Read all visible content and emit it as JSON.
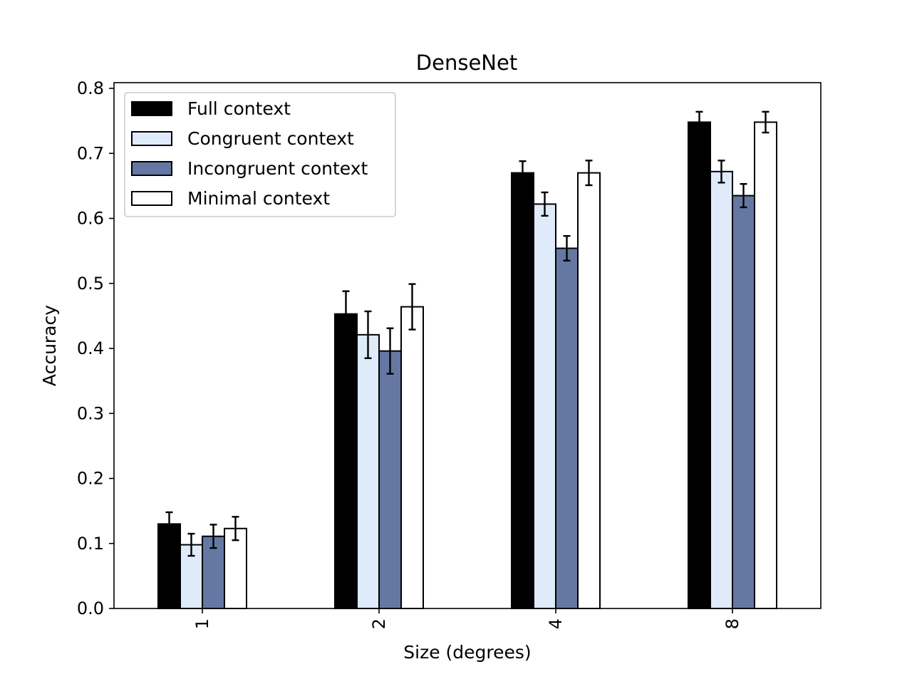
{
  "chart_data": {
    "type": "bar",
    "title": "DenseNet",
    "xlabel": "Size (degrees)",
    "ylabel": "Accuracy",
    "categories": [
      "1",
      "2",
      "4",
      "8"
    ],
    "ylim": [
      0,
      0.8
    ],
    "yticks": [
      "0.0",
      "0.1",
      "0.2",
      "0.3",
      "0.4",
      "0.5",
      "0.6",
      "0.7",
      "0.8"
    ],
    "x_tick_rotation": -90,
    "grid": false,
    "legend_position": "top-left",
    "error_bars": true,
    "series": [
      {
        "name": "Full context",
        "color": "#000000",
        "values": [
          0.13,
          0.453,
          0.67,
          0.748
        ],
        "errors": [
          0.018,
          0.035,
          0.018,
          0.016
        ]
      },
      {
        "name": "Congruent context",
        "color": "#dfeafa",
        "values": [
          0.098,
          0.421,
          0.622,
          0.672
        ],
        "errors": [
          0.017,
          0.036,
          0.018,
          0.017
        ]
      },
      {
        "name": "Incongruent context",
        "color": "#6478a3",
        "values": [
          0.111,
          0.396,
          0.554,
          0.635
        ],
        "errors": [
          0.018,
          0.035,
          0.019,
          0.018
        ]
      },
      {
        "name": "Minimal context",
        "color": "#ffffff",
        "values": [
          0.123,
          0.464,
          0.67,
          0.748
        ],
        "errors": [
          0.018,
          0.035,
          0.019,
          0.016
        ]
      }
    ]
  }
}
